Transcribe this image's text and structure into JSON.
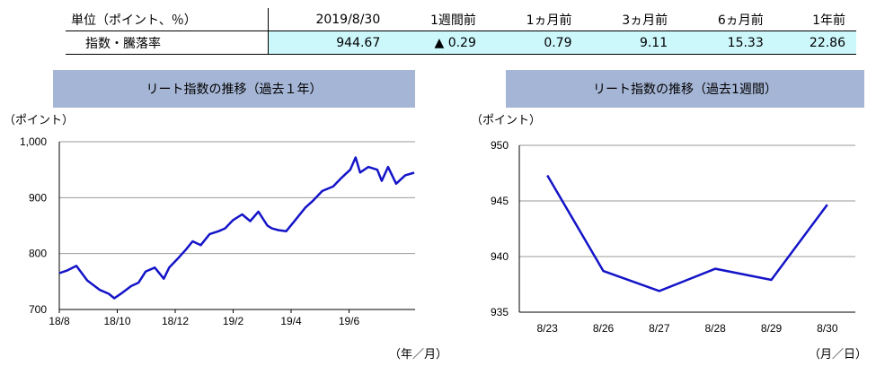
{
  "summary": {
    "headers": [
      "単位（ポイント、％）",
      "2019/8/30",
      "1週間前",
      "1ヵ月前",
      "3ヵ月前",
      "6ヵ月前",
      "1年前"
    ],
    "row_label": "指数・騰落率",
    "values": [
      "944.67",
      "▲ 0.29",
      "0.79",
      "9.11",
      "15.33",
      "22.86"
    ]
  },
  "chart_data": [
    {
      "type": "line",
      "title": "リート指数の推移（過去１年）",
      "y_unit": "（ポイント）",
      "x_unit": "（年／月）",
      "ylim": [
        700,
        1000
      ],
      "yticks": [
        "1,000",
        "900",
        "800",
        "700"
      ],
      "ytick_values": [
        1000,
        900,
        800,
        700
      ],
      "xticks": [
        "18/8",
        "18/10",
        "18/12",
        "19/2",
        "19/4",
        "19/6"
      ],
      "grid": true,
      "color": "#1414c8",
      "series": [
        {
          "x": [
            "2018-08-01",
            "2018-08-10",
            "2018-08-20",
            "2018-09-01",
            "2018-09-15",
            "2018-09-25",
            "2018-10-01",
            "2018-10-10",
            "2018-10-20",
            "2018-10-28",
            "2018-11-05",
            "2018-11-15",
            "2018-11-25",
            "2018-12-01",
            "2018-12-10",
            "2018-12-20",
            "2018-12-27",
            "2019-01-05",
            "2019-01-15",
            "2019-01-25",
            "2019-02-01",
            "2019-02-10",
            "2019-02-20",
            "2019-03-01",
            "2019-03-10",
            "2019-03-20",
            "2019-03-25",
            "2019-04-01",
            "2019-04-10",
            "2019-04-20",
            "2019-05-01",
            "2019-05-10",
            "2019-05-20",
            "2019-06-01",
            "2019-06-10",
            "2019-06-20",
            "2019-06-26",
            "2019-07-01",
            "2019-07-10",
            "2019-07-20",
            "2019-07-25",
            "2019-08-01",
            "2019-08-10",
            "2019-08-20",
            "2019-08-30"
          ],
          "values": [
            765,
            770,
            778,
            752,
            735,
            728,
            720,
            730,
            742,
            748,
            768,
            775,
            755,
            775,
            790,
            808,
            822,
            815,
            835,
            840,
            845,
            860,
            870,
            858,
            875,
            850,
            845,
            842,
            840,
            860,
            882,
            895,
            912,
            920,
            935,
            950,
            972,
            945,
            955,
            950,
            930,
            955,
            925,
            940,
            944.67
          ]
        }
      ]
    },
    {
      "type": "line",
      "title": "リート指数の推移（過去1週間）",
      "y_unit": "（ポイント）",
      "x_unit": "（月／日）",
      "ylim": [
        935,
        950
      ],
      "yticks": [
        "950",
        "945",
        "940",
        "935"
      ],
      "ytick_values": [
        950,
        945,
        940,
        935
      ],
      "categories": [
        "8/23",
        "8/26",
        "8/27",
        "8/28",
        "8/29",
        "8/30"
      ],
      "grid": true,
      "color": "#1414c8",
      "series": [
        {
          "values": [
            947.3,
            938.7,
            936.9,
            938.9,
            937.9,
            944.67
          ]
        }
      ]
    }
  ]
}
